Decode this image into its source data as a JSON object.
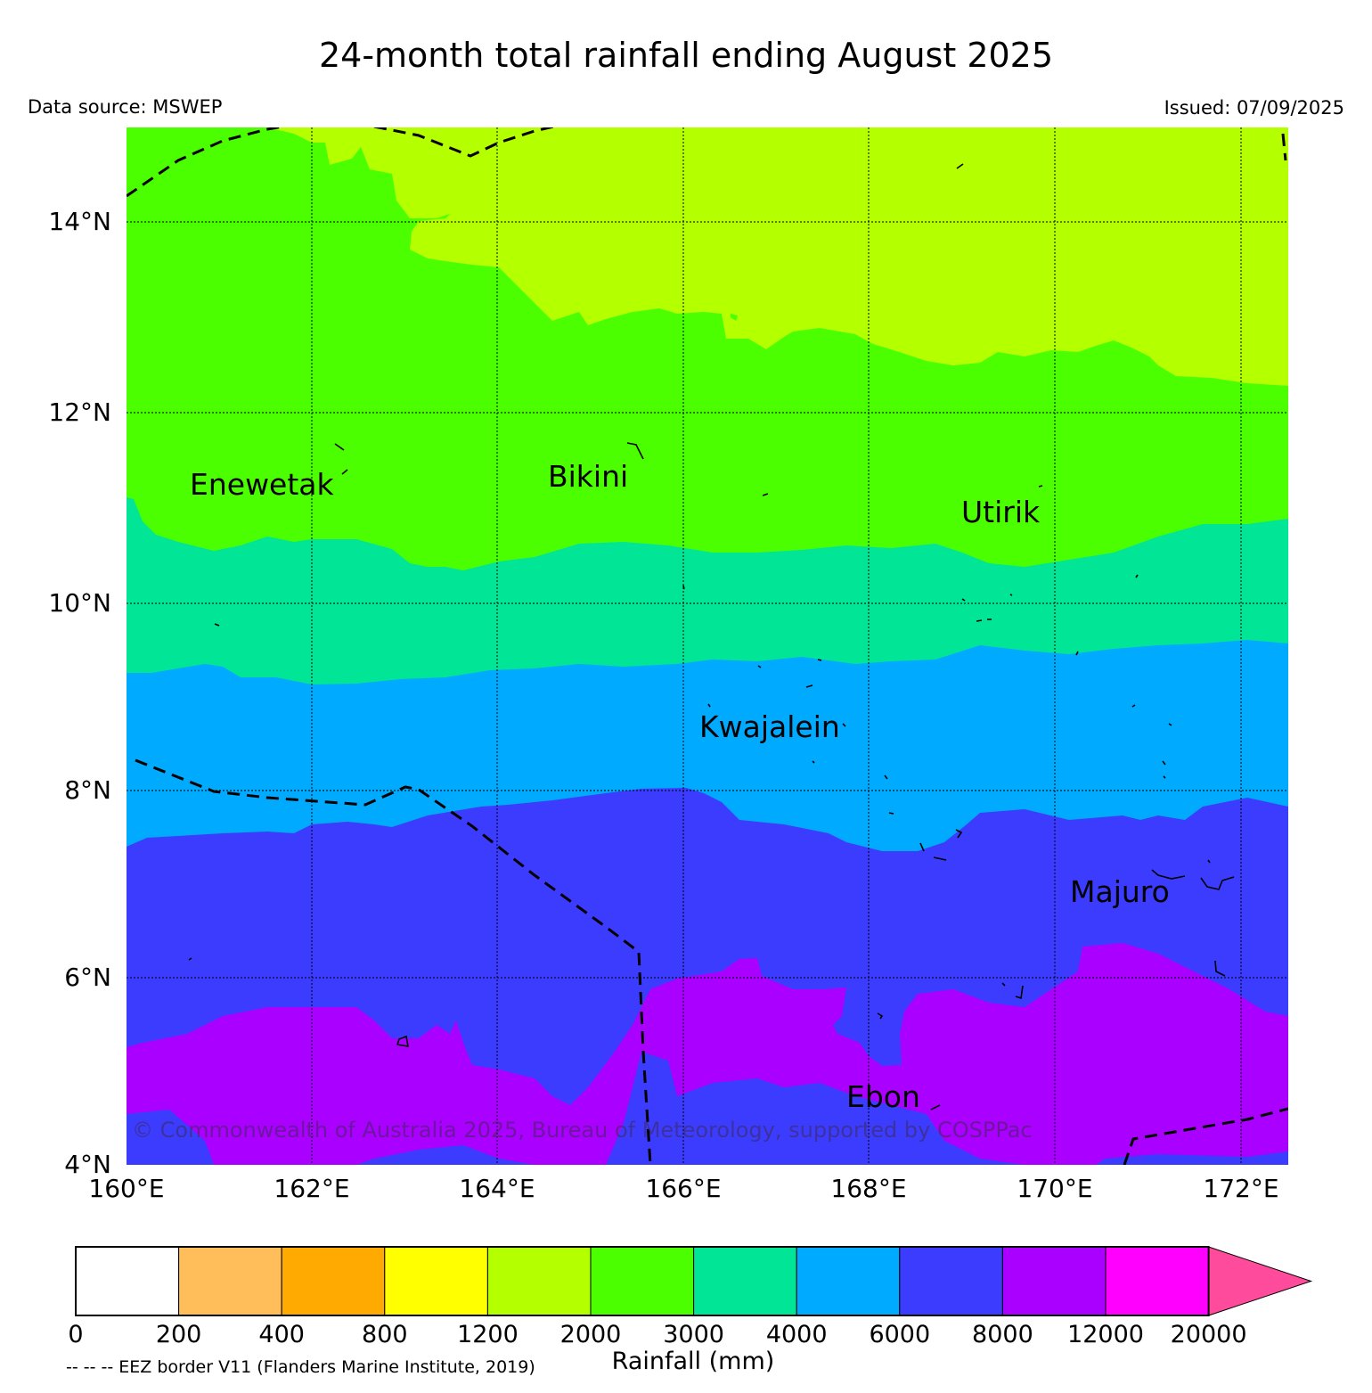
{
  "title": "24-month total rainfall ending August 2025",
  "data_source": "Data source: MSWEP",
  "issued": "Issued: 07/09/2025",
  "copyright": "© Commonwealth of Australia 2025, Bureau of Meteorology, supported by COSPPac",
  "eez_note": "-- -- -- EEZ border V11 (Flanders Marine Institute, 2019)",
  "lat_labels": [
    "14°N",
    "12°N",
    "10°N",
    "8°N",
    "6°N",
    "4°N"
  ],
  "lon_labels": [
    "160°E",
    "162°E",
    "164°E",
    "166°E",
    "168°E",
    "170°E",
    "172°E"
  ],
  "places": {
    "enewetak": "Enewetak",
    "bikini": "Bikini",
    "utirik": "Utirik",
    "kwajalein": "Kwajalein",
    "majuro": "Majuro",
    "ebon": "Ebon"
  },
  "colorbar": {
    "title": "Rainfall (mm)",
    "ticks": [
      "0",
      "200",
      "400",
      "800",
      "1200",
      "2000",
      "3000",
      "4000",
      "6000",
      "8000",
      "12000",
      "20000"
    ],
    "colors": [
      "#ffffff",
      "#ffbe5a",
      "#ffaa00",
      "#ffff00",
      "#b4ff00",
      "#4bff00",
      "#00e696",
      "#00aaff",
      "#3c3cff",
      "#aa00ff",
      "#ff00ff"
    ],
    "extend_color": "#ff4b9b"
  },
  "chart_data": {
    "type": "heatmap",
    "extent": {
      "lon": [
        160,
        172.5
      ],
      "lat": [
        4,
        15
      ]
    },
    "bands_by_latitude": [
      {
        "range_mm": "1200-2000",
        "color": "#b4ff00",
        "approx_lat": "north of ~13N"
      },
      {
        "range_mm": "2000-3000",
        "color": "#4bff00",
        "approx_lat": "~10.5N to ~13N"
      },
      {
        "range_mm": "3000-4000",
        "color": "#00e696",
        "approx_lat": "~9.3N to ~10.5N"
      },
      {
        "range_mm": "4000-6000",
        "color": "#00aaff",
        "approx_lat": "~7.6N to ~9.3N"
      },
      {
        "range_mm": "6000-8000",
        "color": "#3c3cff",
        "approx_lat": "~5.5N to ~7.6N"
      },
      {
        "range_mm": "8000-12000",
        "color": "#aa00ff",
        "approx_lat": "south of ~5.5N (patches)"
      }
    ]
  }
}
